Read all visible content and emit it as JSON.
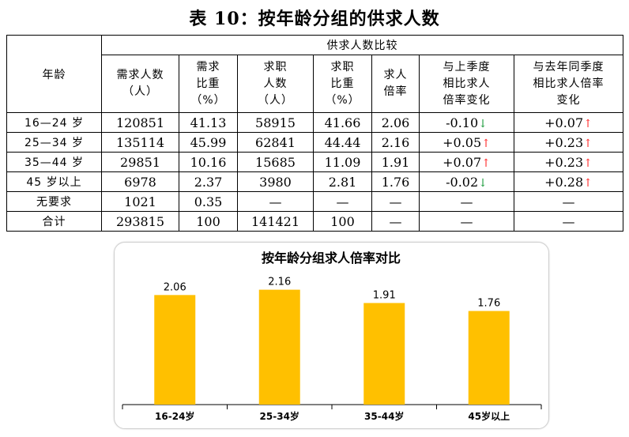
{
  "title": "表 10：按年龄分组的供求人数",
  "table": {
    "col_age": "年龄",
    "group_header": "供求人数比较",
    "headers": [
      [
        "需求人数",
        "（人）"
      ],
      [
        "需求",
        "比重",
        "（%）"
      ],
      [
        "求职",
        "人数",
        "（人）"
      ],
      [
        "求职",
        "比重",
        "（%）"
      ],
      [
        "求人",
        "倍率"
      ],
      [
        "与上季度",
        "相比求人",
        "倍率变化"
      ],
      [
        "与去年同季度",
        "相比求人倍率",
        "变化"
      ]
    ],
    "rows": [
      {
        "age": "16—24 岁",
        "demand": "120851",
        "demand_pct": "41.13",
        "seekers": "58915",
        "seekers_pct": "41.66",
        "ratio": "2.06",
        "qoq": "-0.10",
        "qoq_dir": "down",
        "yoy": "+0.07",
        "yoy_dir": "up"
      },
      {
        "age": "25—34 岁",
        "demand": "135114",
        "demand_pct": "45.99",
        "seekers": "62841",
        "seekers_pct": "44.44",
        "ratio": "2.16",
        "qoq": "+0.05",
        "qoq_dir": "up",
        "yoy": "+0.23",
        "yoy_dir": "up"
      },
      {
        "age": "35—44 岁",
        "demand": "29851",
        "demand_pct": "10.16",
        "seekers": "15685",
        "seekers_pct": "11.09",
        "ratio": "1.91",
        "qoq": "+0.07",
        "qoq_dir": "up",
        "yoy": "+0.23",
        "yoy_dir": "up"
      },
      {
        "age": "45 岁以上",
        "demand": "6978",
        "demand_pct": "2.37",
        "seekers": "3980",
        "seekers_pct": "2.81",
        "ratio": "1.76",
        "qoq": "-0.02",
        "qoq_dir": "down",
        "yoy": "+0.28",
        "yoy_dir": "up"
      },
      {
        "age": "无要求",
        "demand": "1021",
        "demand_pct": "0.35",
        "seekers": "—",
        "seekers_pct": "—",
        "ratio": "—",
        "qoq": "—",
        "qoq_dir": "",
        "yoy": "—",
        "yoy_dir": ""
      },
      {
        "age": "合计",
        "demand": "293815",
        "demand_pct": "100",
        "seekers": "141421",
        "seekers_pct": "100",
        "ratio": "—",
        "qoq": "—",
        "qoq_dir": "",
        "yoy": "—",
        "yoy_dir": ""
      }
    ],
    "arrow_up": "↑",
    "arrow_down": "↓",
    "colors": {
      "up": "#ff2a2a",
      "down": "#1a9a3a"
    }
  },
  "chart_data": {
    "type": "bar",
    "title": "按年龄分组求人倍率对比",
    "categories": [
      "16-24岁",
      "25-34岁",
      "35-44岁",
      "45岁以上"
    ],
    "values": [
      2.06,
      2.16,
      1.91,
      1.76
    ],
    "value_labels": [
      "2.06",
      "2.16",
      "1.91",
      "1.76"
    ],
    "ylim": [
      0,
      2.6
    ],
    "grid": false,
    "legend": "none",
    "bar_color": "#ffc000"
  }
}
